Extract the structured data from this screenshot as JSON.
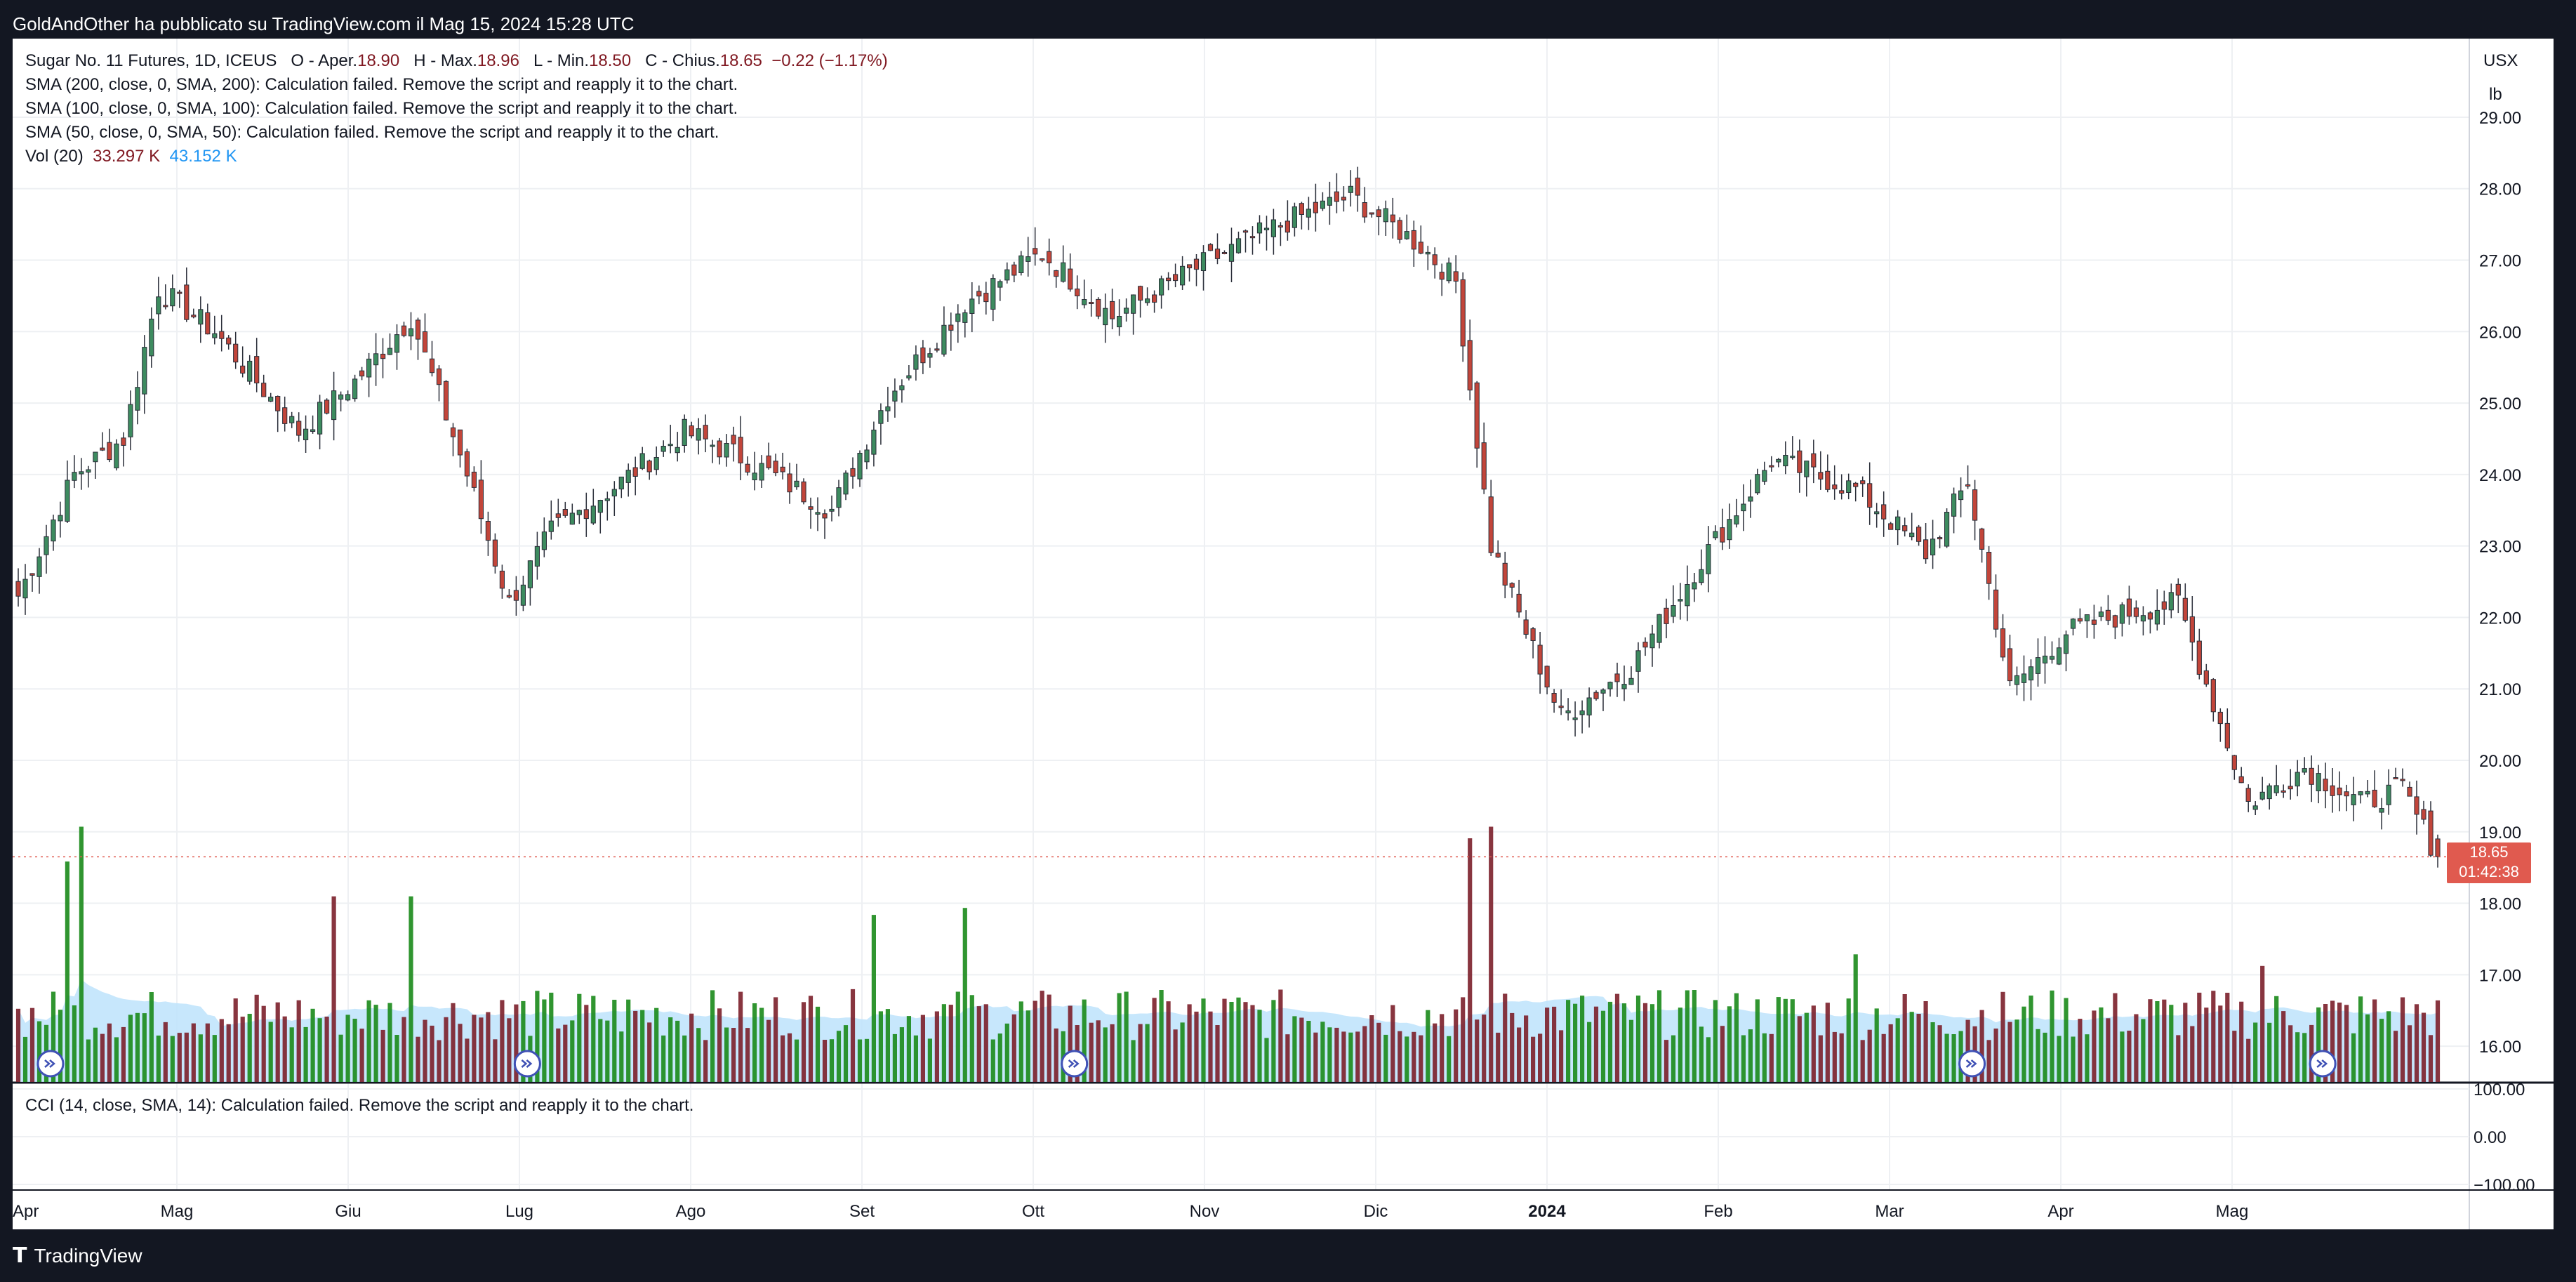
{
  "header": {
    "publish_text": "GoldAndOther ha pubblicato su TradingView.com il Mag 15, 2024 15:28 UTC"
  },
  "legend": {
    "symbol": "Sugar No. 11 Futures, 1D, ICEUS",
    "ohlc": {
      "o_label": "O - Aper.",
      "o": "18.90",
      "h_label": "H - Max.",
      "h": "18.96",
      "l_label": "L - Min.",
      "l": "18.50",
      "c_label": "C - Chius.",
      "c": "18.65",
      "change": "−0.22 (−1.17%)"
    },
    "sma200": "SMA (200, close, 0, SMA, 200): Calculation failed. Remove the script and reapply it to the chart.",
    "sma100": "SMA (100, close, 0, SMA, 100): Calculation failed. Remove the script and reapply it to the chart.",
    "sma50": "SMA (50, close, 0, SMA, 50): Calculation failed. Remove the script and reapply it to the chart.",
    "vol_label": "Vol (20)",
    "vol_value": "33.297 K",
    "vol_ma": "43.152 K",
    "cci": "CCI (14, close, SMA, 14): Calculation failed. Remove the script and reapply it to the chart."
  },
  "price_axis": {
    "currency": "USX",
    "unit": "lb",
    "ticks": [
      "29.00",
      "28.00",
      "27.00",
      "26.00",
      "25.00",
      "24.00",
      "23.00",
      "22.00",
      "21.00",
      "20.00",
      "19.00",
      "18.00",
      "17.00",
      "16.00"
    ],
    "last_price": "18.65",
    "countdown": "01:42:38"
  },
  "cci_axis": {
    "ticks": [
      "100.00",
      "0.00",
      "−100.00"
    ]
  },
  "time_axis": {
    "labels": [
      "Apr",
      "Mag",
      "Giu",
      "Lug",
      "Ago",
      "Set",
      "Ott",
      "Nov",
      "Dic",
      "2024",
      "Feb",
      "Mar",
      "Apr",
      "Mag"
    ]
  },
  "footer": {
    "brand": "TradingView"
  },
  "colors": {
    "up": "#3d8b5f",
    "down": "#c2453a",
    "vol_up": "#1a8a1a",
    "vol_down": "#7b1f2a",
    "vol_ma_fill": "#bde3fb",
    "grid": "#eef0f3",
    "background": "#ffffff"
  },
  "chart_data": {
    "type": "candlestick",
    "title": "Sugar No. 11 Futures, 1D, ICEUS",
    "ylabel": "USX / lb",
    "ylim": [
      15.5,
      30.1
    ],
    "x_labels": [
      "Apr",
      "Mag",
      "Giu",
      "Lug",
      "Ago",
      "Set",
      "Ott",
      "Nov",
      "Dic",
      "2024",
      "Feb",
      "Mar",
      "Apr",
      "Mag"
    ],
    "close_anchors": [
      {
        "t": 0,
        "close": 22.3
      },
      {
        "t": 8,
        "close": 24.0
      },
      {
        "t": 15,
        "close": 24.5
      },
      {
        "t": 20,
        "close": 26.6
      },
      {
        "t": 28,
        "close": 26.0
      },
      {
        "t": 40,
        "close": 24.6
      },
      {
        "t": 48,
        "close": 25.3
      },
      {
        "t": 56,
        "close": 26.2
      },
      {
        "t": 64,
        "close": 24.0
      },
      {
        "t": 70,
        "close": 22.2
      },
      {
        "t": 76,
        "close": 23.2
      },
      {
        "t": 86,
        "close": 23.9
      },
      {
        "t": 95,
        "close": 24.6
      },
      {
        "t": 104,
        "close": 24.2
      },
      {
        "t": 116,
        "close": 23.5
      },
      {
        "t": 124,
        "close": 25.1
      },
      {
        "t": 135,
        "close": 26.4
      },
      {
        "t": 146,
        "close": 27.1
      },
      {
        "t": 156,
        "close": 26.2
      },
      {
        "t": 170,
        "close": 27.0
      },
      {
        "t": 180,
        "close": 27.5
      },
      {
        "t": 190,
        "close": 27.9
      },
      {
        "t": 200,
        "close": 27.2
      },
      {
        "t": 205,
        "close": 26.7
      },
      {
        "t": 210,
        "close": 23.0
      },
      {
        "t": 220,
        "close": 20.6
      },
      {
        "t": 230,
        "close": 21.3
      },
      {
        "t": 240,
        "close": 22.8
      },
      {
        "t": 250,
        "close": 24.2
      },
      {
        "t": 262,
        "close": 23.8
      },
      {
        "t": 272,
        "close": 22.9
      },
      {
        "t": 278,
        "close": 23.9
      },
      {
        "t": 284,
        "close": 21.0
      },
      {
        "t": 292,
        "close": 21.8
      },
      {
        "t": 302,
        "close": 22.1
      },
      {
        "t": 308,
        "close": 22.2
      },
      {
        "t": 318,
        "close": 19.4
      },
      {
        "t": 326,
        "close": 19.9
      },
      {
        "t": 334,
        "close": 19.4
      },
      {
        "t": 340,
        "close": 19.6
      },
      {
        "t": 345,
        "close": 18.65
      }
    ],
    "volume_spikes": [
      {
        "t": 7,
        "kind": "up",
        "k": 95
      },
      {
        "t": 9,
        "kind": "up",
        "k": 110
      },
      {
        "t": 45,
        "kind": "down",
        "k": 80
      },
      {
        "t": 56,
        "kind": "up",
        "k": 80
      },
      {
        "t": 122,
        "kind": "up",
        "k": 72
      },
      {
        "t": 135,
        "kind": "up",
        "k": 75
      },
      {
        "t": 207,
        "kind": "down",
        "k": 105
      },
      {
        "t": 210,
        "kind": "down",
        "k": 110
      },
      {
        "t": 262,
        "kind": "up",
        "k": 55
      },
      {
        "t": 320,
        "kind": "down",
        "k": 50
      }
    ]
  }
}
